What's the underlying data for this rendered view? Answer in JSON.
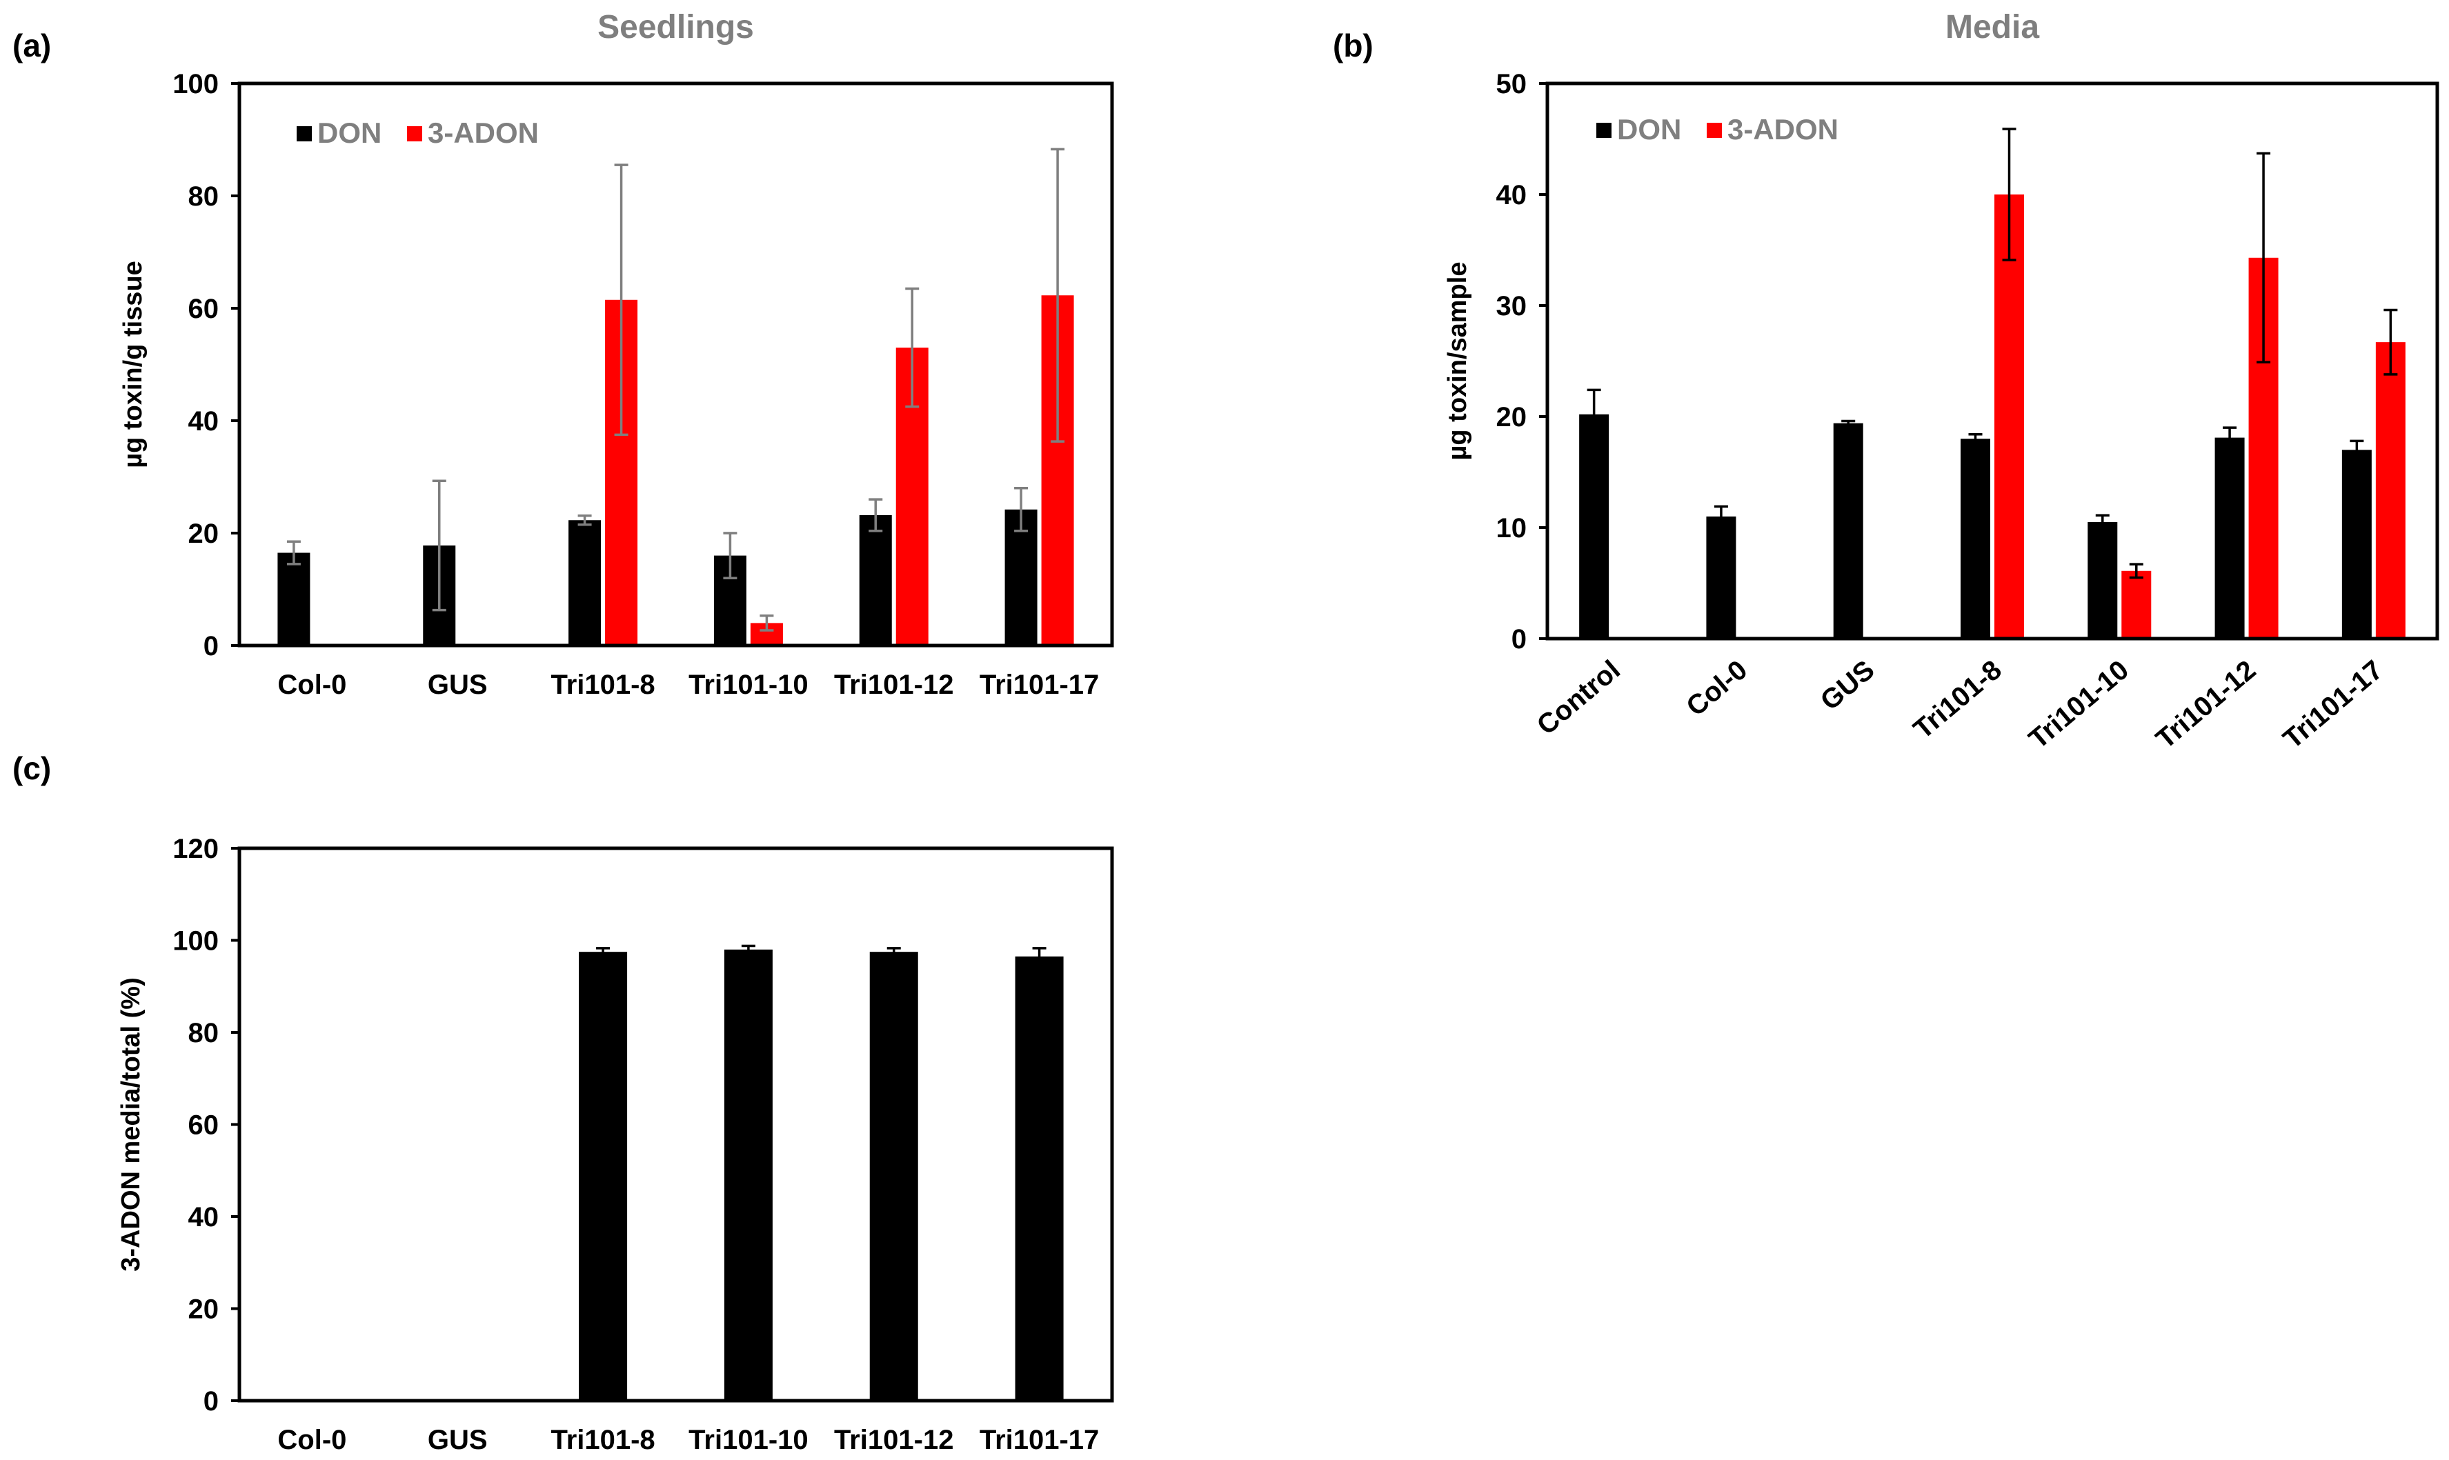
{
  "chart_data": [
    {
      "panel": "(a)",
      "type": "bar",
      "title": "Seedlings",
      "xlabel": "",
      "ylabel": "µg toxin/g tissue",
      "ylim": [
        0,
        100
      ],
      "yticks": [
        0,
        20,
        40,
        60,
        80,
        100
      ],
      "legend": "top-left",
      "categories": [
        "Col-0",
        "GUS",
        "Tri101-8",
        "Tri101-10",
        "Tri101-12",
        "Tri101-17"
      ],
      "series": [
        {
          "name": "DON",
          "color": "#000000",
          "errColor": "#7f7f7f",
          "values": [
            16.5,
            17.8,
            22.3,
            16.0,
            23.2,
            24.2
          ],
          "errors": [
            2.0,
            11.5,
            0.8,
            4.0,
            2.8,
            3.8
          ]
        },
        {
          "name": "3-ADON",
          "color": "#ff0000",
          "errColor": "#7f7f7f",
          "values": [
            null,
            null,
            61.5,
            4.0,
            53.0,
            62.3
          ],
          "errors": [
            null,
            null,
            24.0,
            1.3,
            10.5,
            26.0
          ]
        }
      ]
    },
    {
      "panel": "(b)",
      "type": "bar",
      "title": "Media",
      "xlabel": "",
      "ylabel": "µg toxin/sample",
      "ylim": [
        0,
        50
      ],
      "yticks": [
        0,
        10,
        20,
        30,
        40,
        50
      ],
      "legend": "top-left",
      "rotated_labels": true,
      "categories": [
        "Control",
        "Col-0",
        "GUS",
        "Tri101-8",
        "Tri101-10",
        "Tri101-12",
        "Tri101-17"
      ],
      "series": [
        {
          "name": "DON",
          "color": "#000000",
          "errColor": "#000000",
          "values": [
            20.2,
            11.0,
            19.4,
            18.0,
            10.5,
            18.1,
            17.0
          ],
          "errors": [
            2.2,
            0.9,
            0.2,
            0.4,
            0.6,
            0.9,
            0.8
          ]
        },
        {
          "name": "3-ADON",
          "color": "#ff0000",
          "errColor": "#000000",
          "values": [
            null,
            null,
            null,
            40.0,
            6.1,
            34.3,
            26.7
          ],
          "errors": [
            null,
            null,
            null,
            5.9,
            0.6,
            9.4,
            2.9
          ]
        }
      ]
    },
    {
      "panel": "(c)",
      "type": "bar",
      "title": "",
      "xlabel": "",
      "ylabel": "3-ADON media/total (%)",
      "ylim": [
        0,
        120
      ],
      "yticks": [
        0,
        20,
        40,
        60,
        80,
        100,
        120
      ],
      "legend": "none",
      "categories": [
        "Col-0",
        "GUS",
        "Tri101-8",
        "Tri101-10",
        "Tri101-12",
        "Tri101-17"
      ],
      "series": [
        {
          "name": "3-ADON media/total",
          "color": "#000000",
          "errColor": "#000000",
          "values": [
            null,
            null,
            97.5,
            98.0,
            97.5,
            96.5
          ],
          "errors": [
            null,
            null,
            0.8,
            0.8,
            0.8,
            1.8
          ]
        }
      ]
    }
  ]
}
